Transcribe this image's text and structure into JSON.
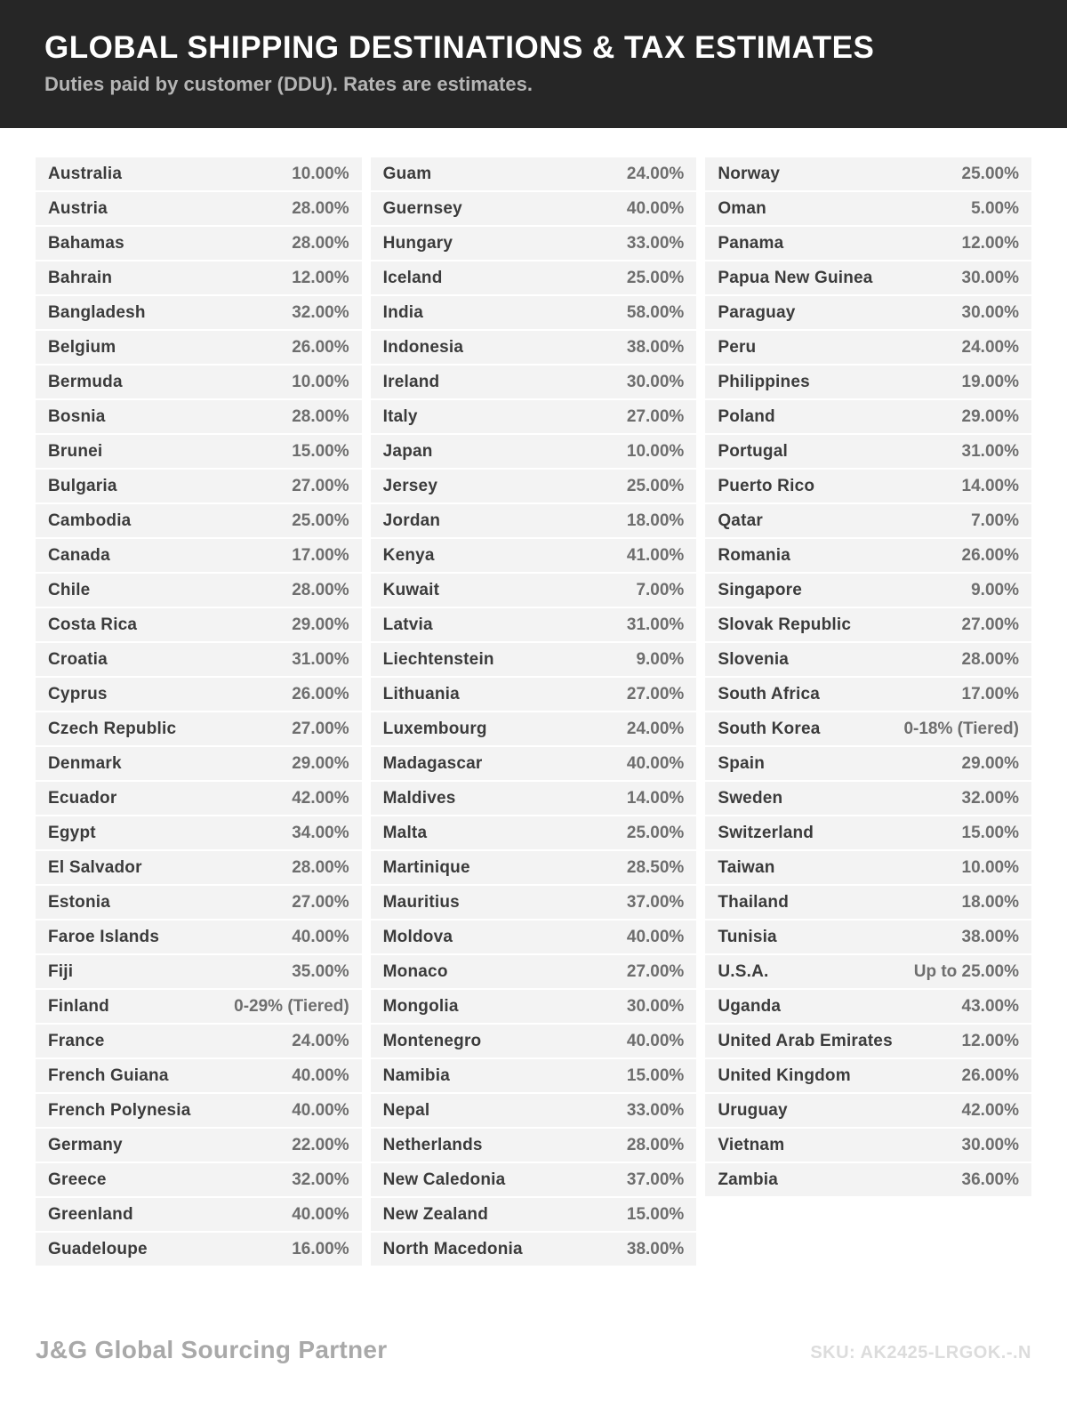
{
  "header": {
    "title": "GLOBAL SHIPPING DESTINATIONS & TAX ESTIMATES",
    "subtitle": "Duties paid by customer (DDU). Rates are estimates."
  },
  "table": {
    "columns": [
      {
        "rows": [
          {
            "country": "Australia",
            "rate": "10.00%"
          },
          {
            "country": "Austria",
            "rate": "28.00%"
          },
          {
            "country": "Bahamas",
            "rate": "28.00%"
          },
          {
            "country": "Bahrain",
            "rate": "12.00%"
          },
          {
            "country": "Bangladesh",
            "rate": "32.00%"
          },
          {
            "country": "Belgium",
            "rate": "26.00%"
          },
          {
            "country": "Bermuda",
            "rate": "10.00%"
          },
          {
            "country": "Bosnia",
            "rate": "28.00%"
          },
          {
            "country": "Brunei",
            "rate": "15.00%"
          },
          {
            "country": "Bulgaria",
            "rate": "27.00%"
          },
          {
            "country": "Cambodia",
            "rate": "25.00%"
          },
          {
            "country": "Canada",
            "rate": "17.00%"
          },
          {
            "country": "Chile",
            "rate": "28.00%"
          },
          {
            "country": "Costa Rica",
            "rate": "29.00%"
          },
          {
            "country": "Croatia",
            "rate": "31.00%"
          },
          {
            "country": "Cyprus",
            "rate": "26.00%"
          },
          {
            "country": "Czech Republic",
            "rate": "27.00%"
          },
          {
            "country": "Denmark",
            "rate": "29.00%"
          },
          {
            "country": "Ecuador",
            "rate": "42.00%"
          },
          {
            "country": "Egypt",
            "rate": "34.00%"
          },
          {
            "country": "El Salvador",
            "rate": "28.00%"
          },
          {
            "country": "Estonia",
            "rate": "27.00%"
          },
          {
            "country": "Faroe Islands",
            "rate": "40.00%"
          },
          {
            "country": "Fiji",
            "rate": "35.00%"
          },
          {
            "country": "Finland",
            "rate": "0-29% (Tiered)"
          },
          {
            "country": "France",
            "rate": "24.00%"
          },
          {
            "country": "French Guiana",
            "rate": "40.00%"
          },
          {
            "country": "French Polynesia",
            "rate": "40.00%"
          },
          {
            "country": "Germany",
            "rate": "22.00%"
          },
          {
            "country": "Greece",
            "rate": "32.00%"
          },
          {
            "country": "Greenland",
            "rate": "40.00%"
          },
          {
            "country": "Guadeloupe",
            "rate": "16.00%"
          }
        ]
      },
      {
        "rows": [
          {
            "country": "Guam",
            "rate": "24.00%"
          },
          {
            "country": "Guernsey",
            "rate": "40.00%"
          },
          {
            "country": "Hungary",
            "rate": "33.00%"
          },
          {
            "country": "Iceland",
            "rate": "25.00%"
          },
          {
            "country": "India",
            "rate": "58.00%"
          },
          {
            "country": "Indonesia",
            "rate": "38.00%"
          },
          {
            "country": "Ireland",
            "rate": "30.00%"
          },
          {
            "country": "Italy",
            "rate": "27.00%"
          },
          {
            "country": "Japan",
            "rate": "10.00%"
          },
          {
            "country": "Jersey",
            "rate": "25.00%"
          },
          {
            "country": "Jordan",
            "rate": "18.00%"
          },
          {
            "country": "Kenya",
            "rate": "41.00%"
          },
          {
            "country": "Kuwait",
            "rate": "7.00%"
          },
          {
            "country": "Latvia",
            "rate": "31.00%"
          },
          {
            "country": "Liechtenstein",
            "rate": "9.00%"
          },
          {
            "country": "Lithuania",
            "rate": "27.00%"
          },
          {
            "country": "Luxembourg",
            "rate": "24.00%"
          },
          {
            "country": "Madagascar",
            "rate": "40.00%"
          },
          {
            "country": "Maldives",
            "rate": "14.00%"
          },
          {
            "country": "Malta",
            "rate": "25.00%"
          },
          {
            "country": "Martinique",
            "rate": "28.50%"
          },
          {
            "country": "Mauritius",
            "rate": "37.00%"
          },
          {
            "country": "Moldova",
            "rate": "40.00%"
          },
          {
            "country": "Monaco",
            "rate": "27.00%"
          },
          {
            "country": "Mongolia",
            "rate": "30.00%"
          },
          {
            "country": "Montenegro",
            "rate": "40.00%"
          },
          {
            "country": "Namibia",
            "rate": "15.00%"
          },
          {
            "country": "Nepal",
            "rate": "33.00%"
          },
          {
            "country": "Netherlands",
            "rate": "28.00%"
          },
          {
            "country": "New Caledonia",
            "rate": "37.00%"
          },
          {
            "country": "New Zealand",
            "rate": "15.00%"
          },
          {
            "country": "North Macedonia",
            "rate": "38.00%"
          }
        ]
      },
      {
        "rows": [
          {
            "country": "Norway",
            "rate": "25.00%"
          },
          {
            "country": "Oman",
            "rate": "5.00%"
          },
          {
            "country": "Panama",
            "rate": "12.00%"
          },
          {
            "country": "Papua New Guinea",
            "rate": "30.00%"
          },
          {
            "country": "Paraguay",
            "rate": "30.00%"
          },
          {
            "country": "Peru",
            "rate": "24.00%"
          },
          {
            "country": "Philippines",
            "rate": "19.00%"
          },
          {
            "country": "Poland",
            "rate": "29.00%"
          },
          {
            "country": "Portugal",
            "rate": "31.00%"
          },
          {
            "country": "Puerto Rico",
            "rate": "14.00%"
          },
          {
            "country": "Qatar",
            "rate": "7.00%"
          },
          {
            "country": "Romania",
            "rate": "26.00%"
          },
          {
            "country": "Singapore",
            "rate": "9.00%"
          },
          {
            "country": "Slovak Republic",
            "rate": "27.00%"
          },
          {
            "country": "Slovenia",
            "rate": "28.00%"
          },
          {
            "country": "South Africa",
            "rate": "17.00%"
          },
          {
            "country": "South Korea",
            "rate": "0-18% (Tiered)"
          },
          {
            "country": "Spain",
            "rate": "29.00%"
          },
          {
            "country": "Sweden",
            "rate": "32.00%"
          },
          {
            "country": "Switzerland",
            "rate": "15.00%"
          },
          {
            "country": "Taiwan",
            "rate": "10.00%"
          },
          {
            "country": "Thailand",
            "rate": "18.00%"
          },
          {
            "country": "Tunisia",
            "rate": "38.00%"
          },
          {
            "country": "U.S.A.",
            "rate": "Up to 25.00%"
          },
          {
            "country": "Uganda",
            "rate": "43.00%"
          },
          {
            "country": "United Arab Emirates",
            "rate": "12.00%"
          },
          {
            "country": "United Kingdom",
            "rate": "26.00%"
          },
          {
            "country": "Uruguay",
            "rate": "42.00%"
          },
          {
            "country": "Vietnam",
            "rate": "30.00%"
          },
          {
            "country": "Zambia",
            "rate": "36.00%"
          }
        ]
      }
    ]
  },
  "footer": {
    "brand": "J&G Global Sourcing Partner",
    "sku": "SKU: AK2425-LRGOK.-.N"
  },
  "colors": {
    "header_bg": "#262626",
    "row_bg": "#f3f3f3",
    "country_text": "#3b3b3b",
    "rate_text": "#6e6e6e",
    "subtitle_text": "#b5b5b5",
    "brand_text": "#a9a9a9",
    "sku_text": "#dcdcdc"
  }
}
